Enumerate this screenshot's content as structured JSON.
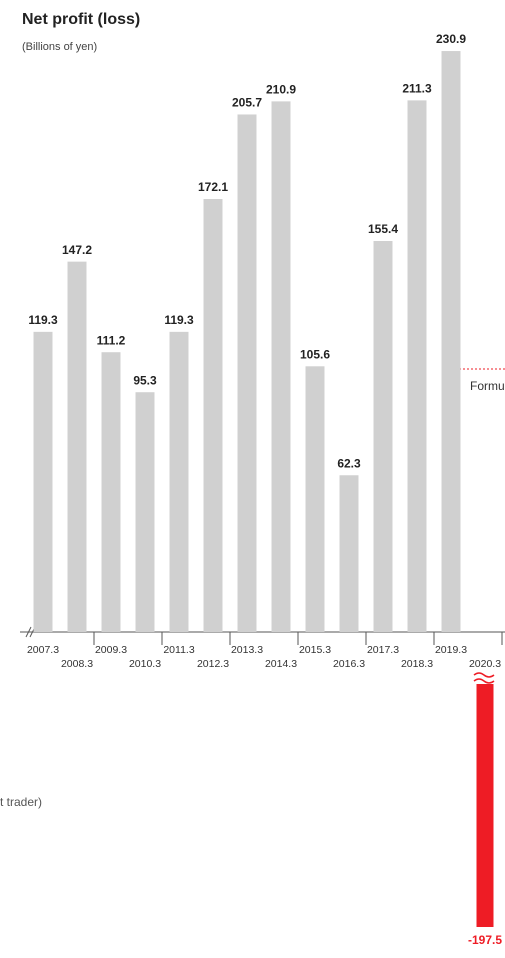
{
  "chart_data": {
    "type": "bar",
    "title": "Net profit (loss)",
    "subtitle": "(Billions of yen)",
    "categories": [
      "2007.3",
      "2008.3",
      "2009.3",
      "2010.3",
      "2011.3",
      "2012.3",
      "2013.3",
      "2014.3",
      "2015.3",
      "2016.3",
      "2017.3",
      "2018.3",
      "2019.3",
      "2020.3"
    ],
    "values": [
      119.3,
      147.2,
      111.2,
      95.3,
      119.3,
      172.1,
      205.7,
      210.9,
      105.6,
      62.3,
      155.4,
      211.3,
      230.9,
      -197.5
    ],
    "color": "#d0d0d0",
    "negative_color": "#ee1c25",
    "annotations": [
      "Formu",
      "t trader)"
    ]
  }
}
